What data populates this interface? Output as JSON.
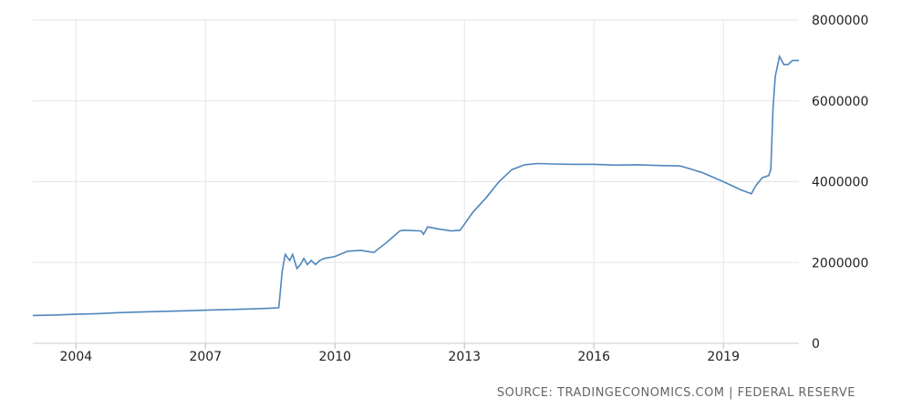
{
  "source": "SOURCE: TRADINGECONOMICS.COM | FEDERAL RESERVE",
  "colors": {
    "line": "#4f86bd",
    "grid": "#e6e6e6",
    "text": "#222222"
  },
  "chart_data": {
    "type": "line",
    "title": "",
    "xlabel": "",
    "ylabel": "",
    "xlim": [
      2003.0,
      2020.75
    ],
    "ylim": [
      0,
      8000000
    ],
    "grid": true,
    "legend": "none",
    "x_ticks": [
      {
        "value": 2004,
        "label": "2004"
      },
      {
        "value": 2007,
        "label": "2007"
      },
      {
        "value": 2010,
        "label": "2010"
      },
      {
        "value": 2013,
        "label": "2013"
      },
      {
        "value": 2016,
        "label": "2016"
      },
      {
        "value": 2019,
        "label": "2019"
      }
    ],
    "y_ticks": [
      {
        "value": 0,
        "label": "0"
      },
      {
        "value": 2000000,
        "label": "2000000"
      },
      {
        "value": 4000000,
        "label": "4000000"
      },
      {
        "value": 6000000,
        "label": "6000000"
      },
      {
        "value": 8000000,
        "label": "8000000"
      }
    ],
    "series": [
      {
        "name": "",
        "x": [
          2003.0,
          2003.5,
          2004.0,
          2004.5,
          2005.0,
          2005.5,
          2006.0,
          2006.5,
          2007.0,
          2007.5,
          2008.0,
          2008.5,
          2008.7,
          2008.78,
          2008.85,
          2008.95,
          2009.02,
          2009.12,
          2009.2,
          2009.28,
          2009.36,
          2009.45,
          2009.55,
          2009.65,
          2009.75,
          2010.0,
          2010.3,
          2010.6,
          2010.9,
          2011.2,
          2011.5,
          2011.6,
          2012.0,
          2012.05,
          2012.15,
          2012.4,
          2012.7,
          2012.9,
          2013.2,
          2013.5,
          2013.8,
          2014.1,
          2014.4,
          2014.7,
          2015.0,
          2015.5,
          2016.0,
          2016.5,
          2017.0,
          2017.5,
          2018.0,
          2018.5,
          2019.0,
          2019.4,
          2019.65,
          2019.75,
          2019.9,
          2020.05,
          2020.1,
          2020.15,
          2020.2,
          2020.3,
          2020.4,
          2020.5,
          2020.6,
          2020.75
        ],
        "values": [
          690000,
          700000,
          720000,
          735000,
          760000,
          775000,
          790000,
          805000,
          820000,
          835000,
          850000,
          870000,
          880000,
          1800000,
          2200000,
          2050000,
          2200000,
          1850000,
          1950000,
          2100000,
          1950000,
          2050000,
          1950000,
          2050000,
          2100000,
          2150000,
          2280000,
          2300000,
          2250000,
          2500000,
          2780000,
          2800000,
          2780000,
          2700000,
          2880000,
          2830000,
          2780000,
          2800000,
          3250000,
          3600000,
          4000000,
          4300000,
          4420000,
          4450000,
          4440000,
          4430000,
          4430000,
          4410000,
          4420000,
          4400000,
          4390000,
          4230000,
          4000000,
          3800000,
          3700000,
          3900000,
          4100000,
          4150000,
          4300000,
          5800000,
          6600000,
          7100000,
          6900000,
          6900000,
          7000000,
          7000000
        ]
      }
    ]
  }
}
